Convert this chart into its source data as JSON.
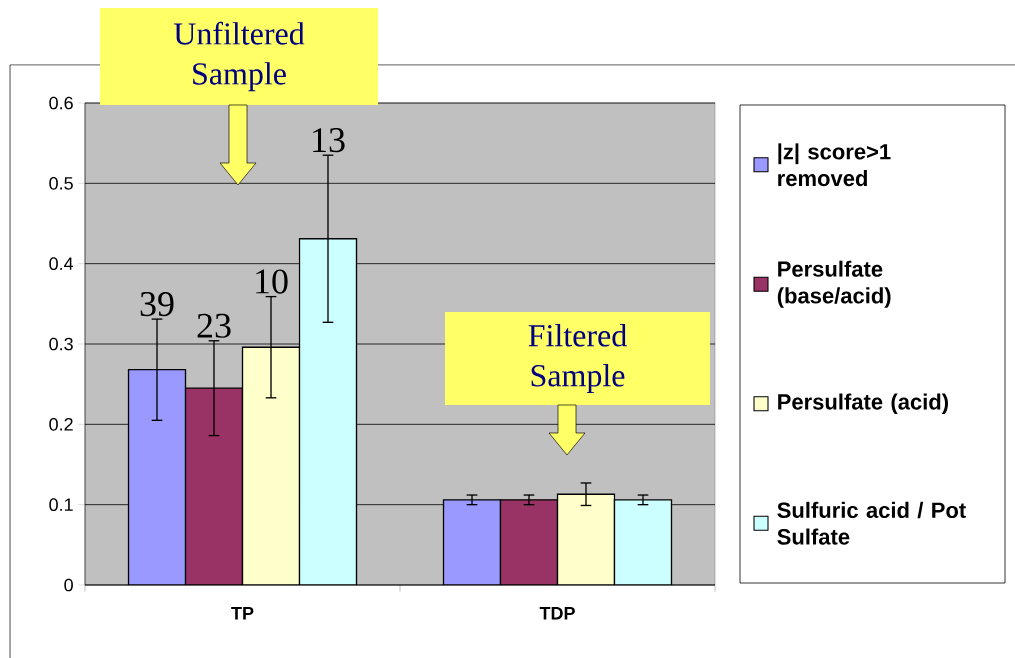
{
  "chart_data": {
    "type": "bar",
    "categories": [
      "TP",
      "TDP"
    ],
    "series": [
      {
        "name": "|z| score>1 removed",
        "color": "#9999ff",
        "values": [
          0.268,
          0.106
        ],
        "errors": [
          0.063,
          0.006
        ]
      },
      {
        "name": "Persulfate (base/acid)",
        "color": "#993366",
        "values": [
          0.245,
          0.106
        ],
        "errors": [
          0.059,
          0.006
        ]
      },
      {
        "name": "Persulfate (acid)",
        "color": "#ffffcc",
        "values": [
          0.296,
          0.113
        ],
        "errors": [
          0.063,
          0.014
        ]
      },
      {
        "name": "Sulfuric acid / Pot Sulfate",
        "color": "#ccffff",
        "values": [
          0.431,
          0.106
        ],
        "errors": [
          0.104,
          0.006
        ]
      }
    ],
    "ylim": [
      0,
      0.6
    ],
    "yticks": [
      0,
      0.1,
      0.2,
      0.3,
      0.4,
      0.5,
      0.6
    ],
    "grid": "y",
    "legend": "right",
    "annotations": [
      "Unfiltered Sample",
      "Filtered Sample",
      "39",
      "23",
      "10",
      "13"
    ]
  }
}
